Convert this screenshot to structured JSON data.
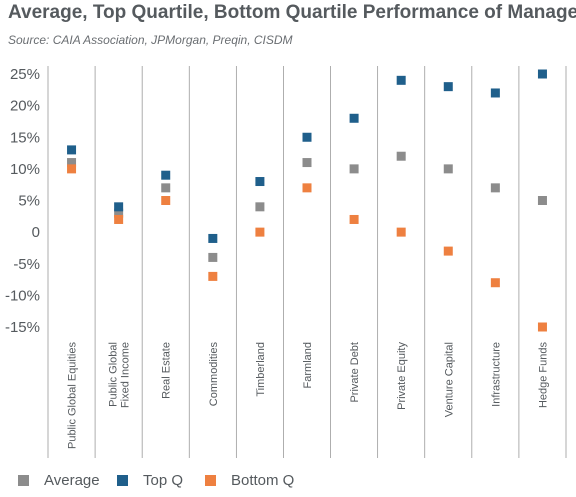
{
  "title": "Average, Top Quartile, Bottom Quartile Performance of Managers",
  "subtitle": "Source: CAIA Association, JPMorgan, Preqin, CISDM",
  "colors": {
    "average": "#8c8c8c",
    "top_q": "#1f5f8b",
    "bottom_q": "#ee8040",
    "axis_text": "#555a5e",
    "grid": "#9a9a9a"
  },
  "chart_data": {
    "type": "scatter",
    "categories": [
      "Public Global Equities",
      "Public Global Fixed Income",
      "Real Estate",
      "Commodities",
      "Timberland",
      "Farmland",
      "Private Debt",
      "Private Equity",
      "Venture Capital",
      "Infrastructure",
      "Hedge Funds"
    ],
    "series": [
      {
        "name": "Average",
        "values": [
          11,
          3,
          7,
          -4,
          4,
          11,
          10,
          12,
          10,
          7,
          5
        ]
      },
      {
        "name": "Top Q",
        "values": [
          13,
          4,
          9,
          -1,
          8,
          15,
          18,
          24,
          23,
          22,
          25
        ]
      },
      {
        "name": "Bottom Q",
        "values": [
          10,
          2,
          5,
          -7,
          0,
          7,
          2,
          0,
          -3,
          -8,
          -15
        ]
      }
    ],
    "yticks": [
      "25%",
      "20%",
      "15%",
      "10%",
      "5%",
      "0",
      "-5%",
      "-10%",
      "-15%"
    ],
    "ylim": [
      -15,
      25
    ],
    "grid": "vertical category separators",
    "legend_position": "bottom"
  },
  "legend": {
    "average": "Average",
    "top_q": "Top Q",
    "bottom_q": "Bottom Q"
  }
}
